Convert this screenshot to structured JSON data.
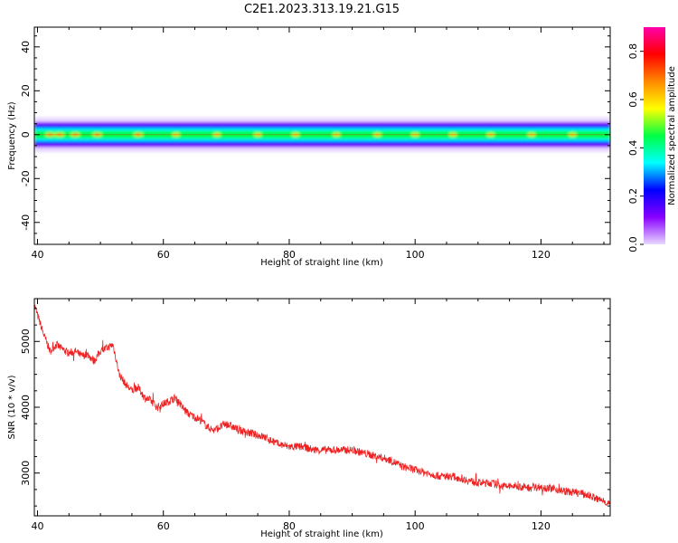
{
  "figure": {
    "title": "C2E1.2023.313.19.21.G15"
  },
  "chart_data": [
    {
      "type": "heatmap",
      "xlabel": "Height of straight line (km)",
      "ylabel": "Frequency (Hz)",
      "xlim": [
        39.5,
        131
      ],
      "ylim": [
        -50,
        49
      ],
      "xticks": [
        40,
        60,
        80,
        100,
        120
      ],
      "yticks": [
        40,
        20,
        0,
        -20,
        -40
      ],
      "band": {
        "center_frequency_hz": 0,
        "half_width_hz": 4,
        "peak_heights_km": [
          42,
          43.5,
          46,
          49.5,
          56,
          62,
          68.5,
          75,
          81,
          87.5,
          94,
          100,
          106,
          112,
          118.5,
          125
        ]
      },
      "colorbar": {
        "label": "Normalized spectral amplitude",
        "ticks": [
          0.0,
          0.2,
          0.4,
          0.6,
          0.8
        ],
        "range": [
          0.0,
          0.9
        ],
        "colormap": "gist_rainbow",
        "colors": [
          "#e8d8ff",
          "#8800ff",
          "#0000ff",
          "#00ffff",
          "#00ff44",
          "#ffff00",
          "#ff8800",
          "#ff0000",
          "#ff00aa"
        ]
      }
    },
    {
      "type": "line",
      "xlabel": "Height of straight line (km)",
      "ylabel": "SNR (10 * v/v)",
      "xlim": [
        39.5,
        131
      ],
      "ylim": [
        2350,
        5650
      ],
      "xticks": [
        40,
        60,
        80,
        100,
        120
      ],
      "yticks": [
        5000,
        4000,
        3000
      ],
      "series": [
        {
          "color": "#ee2222",
          "x": [
            39.5,
            40,
            41,
            42,
            43,
            44,
            45,
            46,
            47,
            48,
            49,
            50,
            51,
            52,
            53,
            54,
            55,
            56,
            57,
            58,
            59,
            60,
            61,
            62,
            63,
            64,
            65,
            66,
            67,
            68,
            69,
            70,
            72,
            74,
            76,
            78,
            80,
            82,
            84,
            86,
            88,
            90,
            92,
            94,
            96,
            98,
            100,
            102,
            104,
            106,
            108,
            110,
            112,
            114,
            116,
            118,
            120,
            122,
            124,
            126,
            128,
            129,
            130,
            131
          ],
          "y": [
            5560,
            5400,
            5100,
            4850,
            4950,
            4880,
            4820,
            4850,
            4780,
            4800,
            4700,
            4850,
            4900,
            4950,
            4500,
            4350,
            4250,
            4300,
            4150,
            4100,
            4000,
            4050,
            4100,
            4150,
            4000,
            3900,
            3850,
            3800,
            3700,
            3650,
            3700,
            3750,
            3650,
            3600,
            3550,
            3450,
            3400,
            3400,
            3350,
            3350,
            3350,
            3350,
            3300,
            3250,
            3200,
            3100,
            3050,
            3000,
            2950,
            2950,
            2900,
            2850,
            2850,
            2800,
            2800,
            2780,
            2790,
            2760,
            2720,
            2700,
            2650,
            2600,
            2580,
            2520
          ],
          "noise_amplitude": 60
        }
      ]
    }
  ]
}
